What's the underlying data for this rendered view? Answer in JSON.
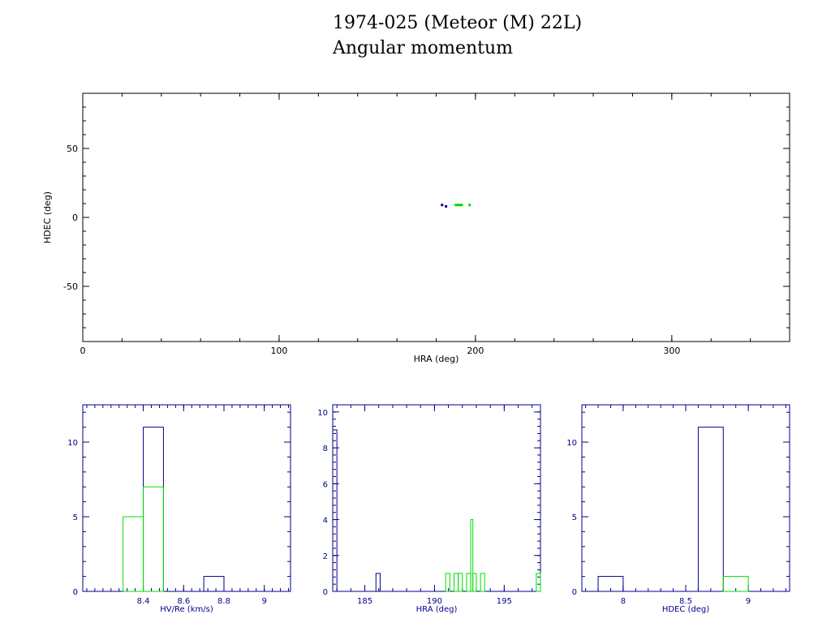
{
  "header": {
    "title": "1974-025 (Meteor (M) 22L)",
    "subtitle": "Angular momentum"
  },
  "colors": {
    "blue": "#00008b",
    "green": "#00dd00",
    "axis": "#000000"
  },
  "chart_data": [
    {
      "id": "scatter",
      "type": "scatter",
      "xlabel": "HRA (deg)",
      "ylabel": "HDEC (deg)",
      "xlim": [
        0,
        360
      ],
      "ylim": [
        -90,
        90
      ],
      "xticks": [
        0,
        100,
        200,
        300
      ],
      "yticks": [
        -50,
        0,
        50
      ],
      "series": [
        {
          "color": "blue",
          "points": [
            [
              183,
              9
            ],
            [
              185,
              8
            ]
          ]
        },
        {
          "color": "green",
          "points": [
            [
              190,
              9
            ],
            [
              191,
              9
            ],
            [
              192,
              9
            ],
            [
              193,
              9
            ],
            [
              197,
              9
            ]
          ]
        }
      ]
    },
    {
      "id": "hist-hv",
      "type": "histogram",
      "xlabel": "HV/Re (km/s)",
      "ylabel": "",
      "xlim": [
        8.1,
        9.13
      ],
      "ylim": [
        0,
        12.5
      ],
      "xticks": [
        8.4,
        8.6,
        8.8,
        9
      ],
      "yticks": [
        0,
        5,
        10
      ],
      "series": [
        {
          "color": "blue",
          "bins": [
            [
              8.4,
              8.5,
              11
            ],
            [
              8.7,
              8.8,
              1
            ]
          ]
        },
        {
          "color": "green",
          "bins": [
            [
              8.3,
              8.4,
              5
            ],
            [
              8.4,
              8.5,
              7
            ]
          ]
        }
      ]
    },
    {
      "id": "hist-hra",
      "type": "histogram",
      "xlabel": "HRA (deg)",
      "ylabel": "",
      "xlim": [
        182.7,
        197.6
      ],
      "ylim": [
        0,
        10.4
      ],
      "xticks": [
        185,
        190,
        195
      ],
      "yticks": [
        0,
        2,
        4,
        6,
        8,
        10
      ],
      "series": [
        {
          "color": "blue",
          "bins": [
            [
              182.7,
              183.0,
              9
            ],
            [
              185.8,
              186.1,
              1
            ]
          ]
        },
        {
          "color": "green",
          "bins": [
            [
              190.8,
              191.1,
              1
            ],
            [
              191.1,
              191.4,
              0
            ],
            [
              191.4,
              191.7,
              1
            ],
            [
              191.7,
              192.0,
              1
            ],
            [
              192.0,
              192.3,
              0
            ],
            [
              192.3,
              192.6,
              1
            ],
            [
              192.6,
              192.75,
              4
            ],
            [
              192.75,
              193.0,
              1
            ],
            [
              193.0,
              193.3,
              0
            ],
            [
              193.3,
              193.6,
              1
            ],
            [
              197.3,
              197.6,
              1
            ]
          ]
        }
      ]
    },
    {
      "id": "hist-hdec",
      "type": "histogram",
      "xlabel": "HDEC (deg)",
      "ylabel": "",
      "xlim": [
        7.67,
        9.33
      ],
      "ylim": [
        0,
        12.5
      ],
      "xticks": [
        8,
        8.5,
        9
      ],
      "yticks": [
        0,
        5,
        10
      ],
      "series": [
        {
          "color": "blue",
          "bins": [
            [
              7.8,
              8.0,
              1
            ],
            [
              8.6,
              8.8,
              11
            ]
          ]
        },
        {
          "color": "green",
          "bins": [
            [
              8.8,
              9.0,
              1
            ]
          ]
        }
      ]
    }
  ]
}
